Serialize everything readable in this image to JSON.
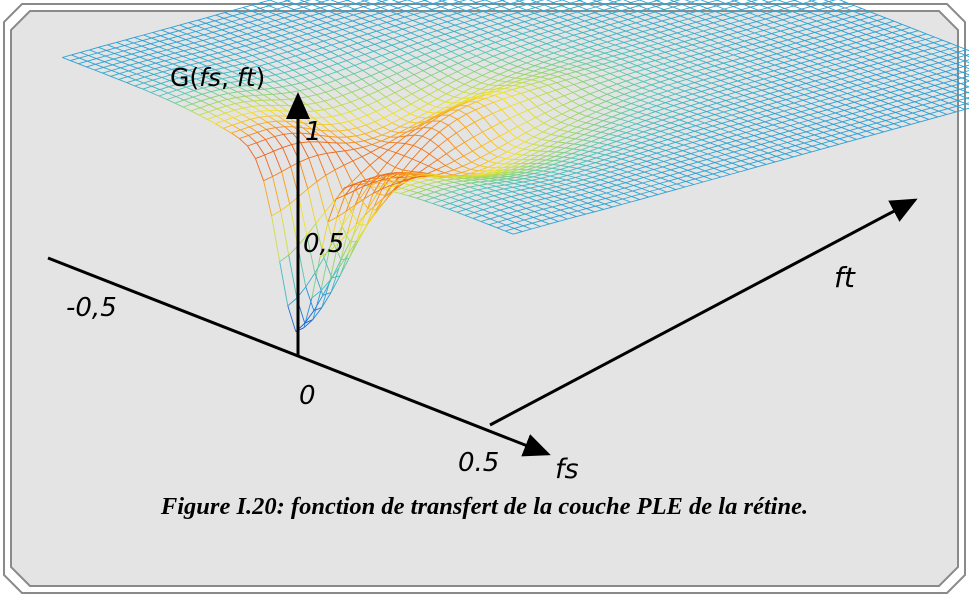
{
  "labels": {
    "z_axis": "G(fs, ft)",
    "z_axis_parts": {
      "pre": "G(",
      "a": "fs",
      "mid": ", ",
      "b": "ft",
      "post": ")"
    },
    "x_axis": "fs",
    "y_axis": "ft",
    "tick_zero": "0",
    "tick_neg": "-0,5",
    "tick_pos": "0.5",
    "z_tick_1": "1",
    "z_tick_05": "0,5"
  },
  "caption": "Figure I.20: fonction de transfert de la couche PLE de la rétine.",
  "colors": {
    "panel": "#e4e4e4",
    "frame": "#8a8a8a",
    "axes": "#000000",
    "colormap": [
      "#0a1a8c",
      "#1a5fd8",
      "#2a9fd6",
      "#4cc3b8",
      "#9fd860",
      "#f2e22a",
      "#f7a21c",
      "#e8401c",
      "#b01010"
    ]
  }
}
